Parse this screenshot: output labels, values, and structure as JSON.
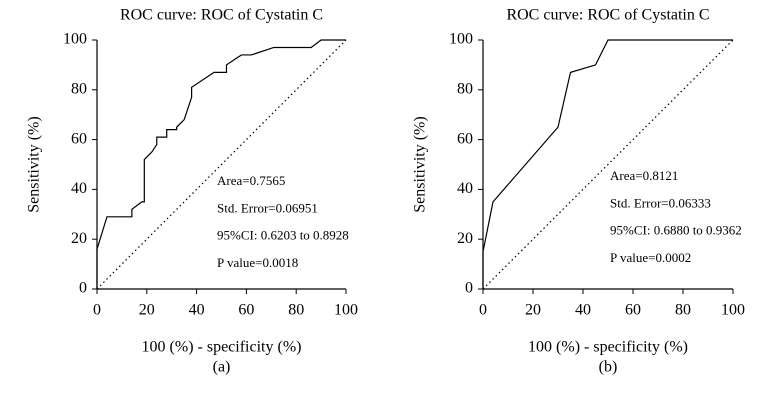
{
  "chart_data": [
    {
      "type": "line",
      "title": "ROC curve: ROC of Cystatin C",
      "xlabel": "100 (%) - specificity (%)",
      "ylabel": "Sensitivity (%)",
      "panel_label": "(a)",
      "x": [
        0,
        0,
        4,
        14,
        14,
        18,
        19,
        19,
        19,
        22,
        24,
        24,
        28,
        28,
        32,
        32,
        35,
        38,
        38,
        47,
        52,
        52,
        55,
        58,
        62,
        71,
        86,
        90,
        100
      ],
      "values": [
        0,
        16,
        29,
        29,
        32,
        35,
        35,
        48,
        52,
        55,
        58,
        61,
        61,
        64,
        64,
        65,
        68,
        77,
        81,
        87,
        87,
        90,
        92,
        94,
        94,
        97,
        97,
        100,
        100
      ],
      "color": "#000000",
      "reference_line": true,
      "xlim": [
        0,
        100
      ],
      "ylim": [
        0,
        100
      ],
      "xticks": [
        0,
        20,
        40,
        60,
        80,
        100
      ],
      "yticks": [
        0,
        20,
        40,
        60,
        80,
        100
      ],
      "annotations": [
        "Area=0.7565",
        "Std. Error=0.06951",
        "95%CI: 0.6203 to 0.8928",
        "P value=0.0018"
      ]
    },
    {
      "type": "line",
      "title": "ROC curve: ROC of Cystatin C",
      "xlabel": "100 (%) - specificity (%)",
      "ylabel": "Sensitivity (%)",
      "panel_label": "(b)",
      "x": [
        0,
        0,
        4,
        30,
        35,
        45,
        50,
        100
      ],
      "values": [
        0,
        15,
        35,
        65,
        87,
        90,
        100,
        100
      ],
      "color": "#000000",
      "reference_line": true,
      "xlim": [
        0,
        100
      ],
      "ylim": [
        0,
        100
      ],
      "xticks": [
        0,
        20,
        40,
        60,
        80,
        100
      ],
      "yticks": [
        0,
        20,
        40,
        60,
        80,
        100
      ],
      "annotations": [
        "Area=0.8121",
        "Std. Error=0.06333",
        "95%CI: 0.6880 to 0.9362",
        "P value=0.0002"
      ]
    }
  ]
}
